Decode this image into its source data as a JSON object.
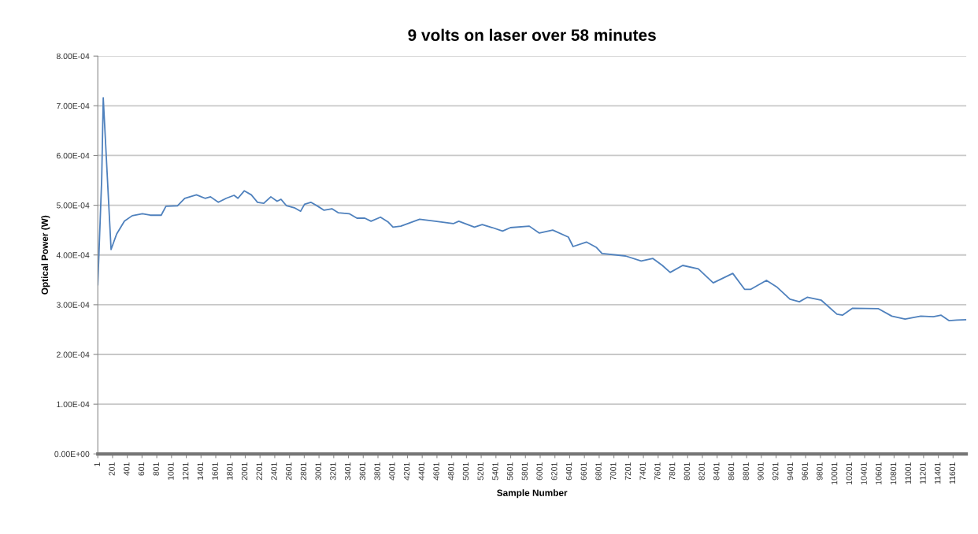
{
  "chart_data": {
    "type": "line",
    "title": "9 volts on laser over 58 minutes",
    "xlabel": "Sample Number",
    "ylabel": "Optical Power (W)",
    "x": [
      1,
      54,
      75,
      181,
      256,
      362,
      468,
      606,
      713,
      861,
      925,
      1084,
      1180,
      1339,
      1456,
      1530,
      1636,
      1743,
      1849,
      1902,
      1987,
      2083,
      2167,
      2252,
      2348,
      2433,
      2486,
      2560,
      2667,
      2752,
      2805,
      2890,
      2985,
      3070,
      3176,
      3261,
      3410,
      3516,
      3622,
      3707,
      3835,
      3941,
      4005,
      4111,
      4366,
      4578,
      4822,
      4897,
      5109,
      5215,
      5353,
      5491,
      5598,
      5853,
      5990,
      6171,
      6383,
      6447,
      6628,
      6766,
      6840,
      7159,
      7371,
      7530,
      7658,
      7764,
      7934,
      8146,
      8348,
      8613,
      8773,
      8858,
      9070,
      9208,
      9389,
      9517,
      9623,
      9814,
      10026,
      10100,
      10238,
      10589,
      10770,
      10950,
      11163,
      11333,
      11439,
      11545,
      11651,
      11780
    ],
    "series": [
      {
        "color": "#4f81bd",
        "values": [
          0.00034,
          0.000553,
          0.000716,
          0.000411,
          0.000442,
          0.000468,
          0.000479,
          0.000483,
          0.00048,
          0.00048,
          0.000498,
          0.000499,
          0.000514,
          0.000521,
          0.000514,
          0.000517,
          0.000506,
          0.000514,
          0.00052,
          0.000514,
          0.000529,
          0.000521,
          0.000506,
          0.000504,
          0.000517,
          0.000508,
          0.000512,
          0.000499,
          0.000495,
          0.000488,
          0.000502,
          0.000506,
          0.000498,
          0.00049,
          0.000493,
          0.000485,
          0.000483,
          0.000474,
          0.000474,
          0.000468,
          0.000476,
          0.000466,
          0.000456,
          0.000458,
          0.000472,
          0.000468,
          0.000463,
          0.000468,
          0.000456,
          0.000461,
          0.000455,
          0.000448,
          0.000455,
          0.000458,
          0.000444,
          0.00045,
          0.000436,
          0.000417,
          0.000426,
          0.000415,
          0.000403,
          0.000398,
          0.000388,
          0.000393,
          0.000379,
          0.000365,
          0.000379,
          0.000372,
          0.000344,
          0.000363,
          0.000331,
          0.000331,
          0.000349,
          0.000336,
          0.000311,
          0.000306,
          0.000315,
          0.000309,
          0.000281,
          0.000279,
          0.000293,
          0.000292,
          0.000277,
          0.000271,
          0.000277,
          0.000276,
          0.000279,
          0.000268,
          0.000269,
          0.00027
        ]
      }
    ],
    "xlim": [
      1,
      11780
    ],
    "xticks": [
      1,
      201,
      401,
      601,
      801,
      1001,
      1201,
      1401,
      1601,
      1801,
      2001,
      2201,
      2401,
      2601,
      2801,
      3001,
      3201,
      3401,
      3601,
      3801,
      4001,
      4201,
      4401,
      4601,
      4801,
      5001,
      5201,
      5401,
      5601,
      5801,
      6001,
      6201,
      6401,
      6601,
      6801,
      7001,
      7201,
      7401,
      7601,
      7801,
      8001,
      8201,
      8401,
      8601,
      8801,
      9001,
      9201,
      9401,
      9601,
      9801,
      10001,
      10201,
      10401,
      10601,
      10801,
      11001,
      11201,
      11401,
      11601
    ],
    "ylim": [
      0,
      0.0008
    ],
    "yticks": [
      {
        "value": 0,
        "label": "0.00E+00"
      },
      {
        "value": 0.0001,
        "label": "1.00E-04"
      },
      {
        "value": 0.0002,
        "label": "2.00E-04"
      },
      {
        "value": 0.0003,
        "label": "3.00E-04"
      },
      {
        "value": 0.0004,
        "label": "4.00E-04"
      },
      {
        "value": 0.0005,
        "label": "5.00E-04"
      },
      {
        "value": 0.0006,
        "label": "6.00E-04"
      },
      {
        "value": 0.0007,
        "label": "7.00E-04"
      },
      {
        "value": 0.0008,
        "label": "8.00E-04"
      }
    ],
    "grid": "y",
    "legend": false,
    "marker": "none",
    "line_style": "solid"
  }
}
